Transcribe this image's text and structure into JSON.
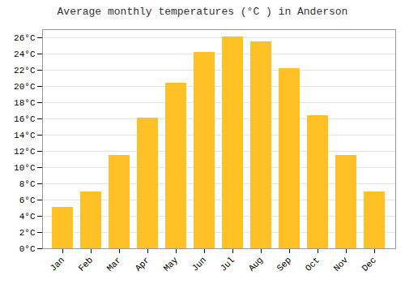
{
  "chart_data": {
    "type": "bar",
    "title": "Average monthly temperatures (°C ) in Anderson",
    "categories": [
      "Jan",
      "Feb",
      "Mar",
      "Apr",
      "May",
      "Jun",
      "Jul",
      "Aug",
      "Sep",
      "Oct",
      "Nov",
      "Dec"
    ],
    "values": [
      5.1,
      7.0,
      11.5,
      16.1,
      20.4,
      24.2,
      26.1,
      25.5,
      22.2,
      16.4,
      11.5,
      7.0
    ],
    "color": "#FFC125",
    "ylim": [
      0,
      27
    ],
    "yticks": [
      {
        "value": 0,
        "label": "0°C"
      },
      {
        "value": 2,
        "label": "2°C"
      },
      {
        "value": 4,
        "label": "4°C"
      },
      {
        "value": 6,
        "label": "6°C"
      },
      {
        "value": 8,
        "label": "8°C"
      },
      {
        "value": 10,
        "label": "10°C"
      },
      {
        "value": 12,
        "label": "12°C"
      },
      {
        "value": 14,
        "label": "14°C"
      },
      {
        "value": 16,
        "label": "16°C"
      },
      {
        "value": 18,
        "label": "18°C"
      },
      {
        "value": 20,
        "label": "20°C"
      },
      {
        "value": 22,
        "label": "22°C"
      },
      {
        "value": 24,
        "label": "24°C"
      },
      {
        "value": 26,
        "label": "26°C"
      }
    ],
    "grid": true
  }
}
